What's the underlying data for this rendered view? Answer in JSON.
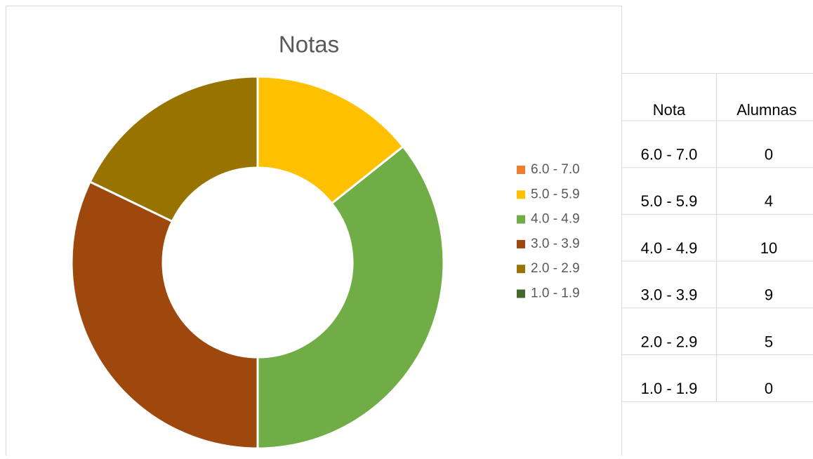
{
  "chart_data": {
    "type": "donut",
    "title": "Notas",
    "categories": [
      "6.0 - 7.0",
      "5.0 - 5.9",
      "4.0 - 4.9",
      "3.0 - 3.9",
      "2.0 - 2.9",
      "1.0 - 1.9"
    ],
    "values": [
      0,
      4,
      10,
      9,
      5,
      0
    ],
    "colors": [
      "#ed7d31",
      "#ffc000",
      "#70ad47",
      "#9e480e",
      "#997300",
      "#43682b"
    ],
    "legend": "right"
  },
  "table": {
    "headers": [
      "Nota",
      "Alumnas"
    ]
  }
}
